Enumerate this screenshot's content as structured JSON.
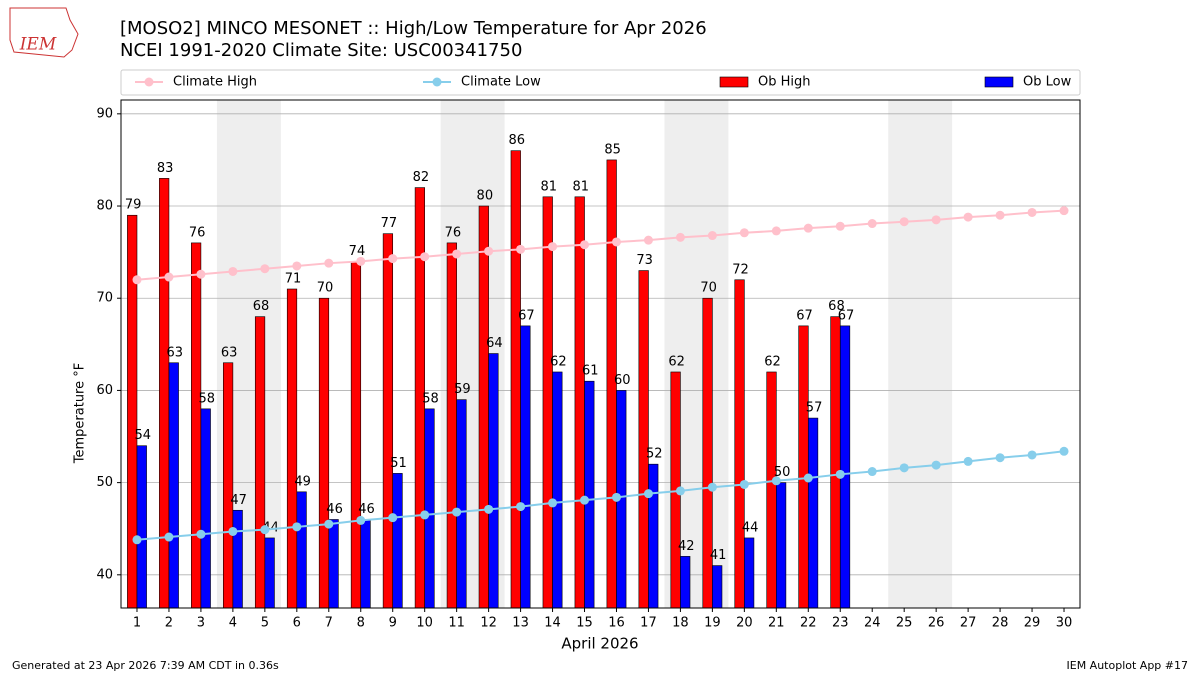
{
  "chart_data": {
    "type": "bar",
    "title": "[MOSO2] MINCO MESONET :: High/Low Temperature for Apr 2026",
    "subtitle": "NCEI 1991-2020 Climate Site: USC00341750",
    "logo": "IEM",
    "y_label": "Temperature °F",
    "x_label": "April 2026",
    "footer_left": "Generated at 23 Apr 2026 7:39 AM CDT in 0.36s",
    "footer_right": "IEM Autoplot App #17",
    "categories": [
      "1",
      "2",
      "3",
      "4",
      "5",
      "6",
      "7",
      "8",
      "9",
      "10",
      "11",
      "12",
      "13",
      "14",
      "15",
      "16",
      "17",
      "18",
      "19",
      "20",
      "21",
      "22",
      "23",
      "24",
      "25",
      "26",
      "27",
      "28",
      "29",
      "30"
    ],
    "ylim": [
      36.4,
      91.5
    ],
    "yticks": [
      40,
      50,
      60,
      70,
      80,
      90
    ],
    "grid": true,
    "series": [
      {
        "name": "Climate High",
        "kind": "line",
        "color": "#ffc0cb",
        "values": [
          72.0,
          72.3,
          72.6,
          72.9,
          73.2,
          73.5,
          73.8,
          74.0,
          74.3,
          74.5,
          74.8,
          75.1,
          75.3,
          75.6,
          75.8,
          76.1,
          76.3,
          76.6,
          76.8,
          77.1,
          77.3,
          77.6,
          77.8,
          78.1,
          78.3,
          78.5,
          78.8,
          79.0,
          79.3,
          79.5
        ]
      },
      {
        "name": "Climate Low",
        "kind": "line",
        "color": "#87ceeb",
        "values": [
          43.8,
          44.1,
          44.4,
          44.7,
          44.9,
          45.2,
          45.5,
          45.9,
          46.2,
          46.5,
          46.8,
          47.1,
          47.4,
          47.8,
          48.1,
          48.4,
          48.8,
          49.1,
          49.5,
          49.8,
          50.2,
          50.5,
          50.9,
          51.2,
          51.6,
          51.9,
          52.3,
          52.7,
          53.0,
          53.4
        ]
      },
      {
        "name": "Ob High",
        "kind": "bar",
        "color": "#ff0000",
        "values": [
          79,
          83,
          76,
          63,
          68,
          71,
          70,
          74,
          77,
          82,
          76,
          80,
          86,
          81,
          81,
          85,
          73,
          62,
          70,
          72,
          62,
          67,
          68,
          null,
          null,
          null,
          null,
          null,
          null,
          null
        ]
      },
      {
        "name": "Ob Low",
        "kind": "bar",
        "color": "#0000ff",
        "values": [
          54,
          63,
          58,
          47,
          44,
          49,
          46,
          46,
          51,
          58,
          59,
          64,
          67,
          62,
          61,
          60,
          52,
          42,
          41,
          44,
          50,
          57,
          67,
          null,
          null,
          null,
          null,
          null,
          null,
          null
        ]
      }
    ]
  }
}
